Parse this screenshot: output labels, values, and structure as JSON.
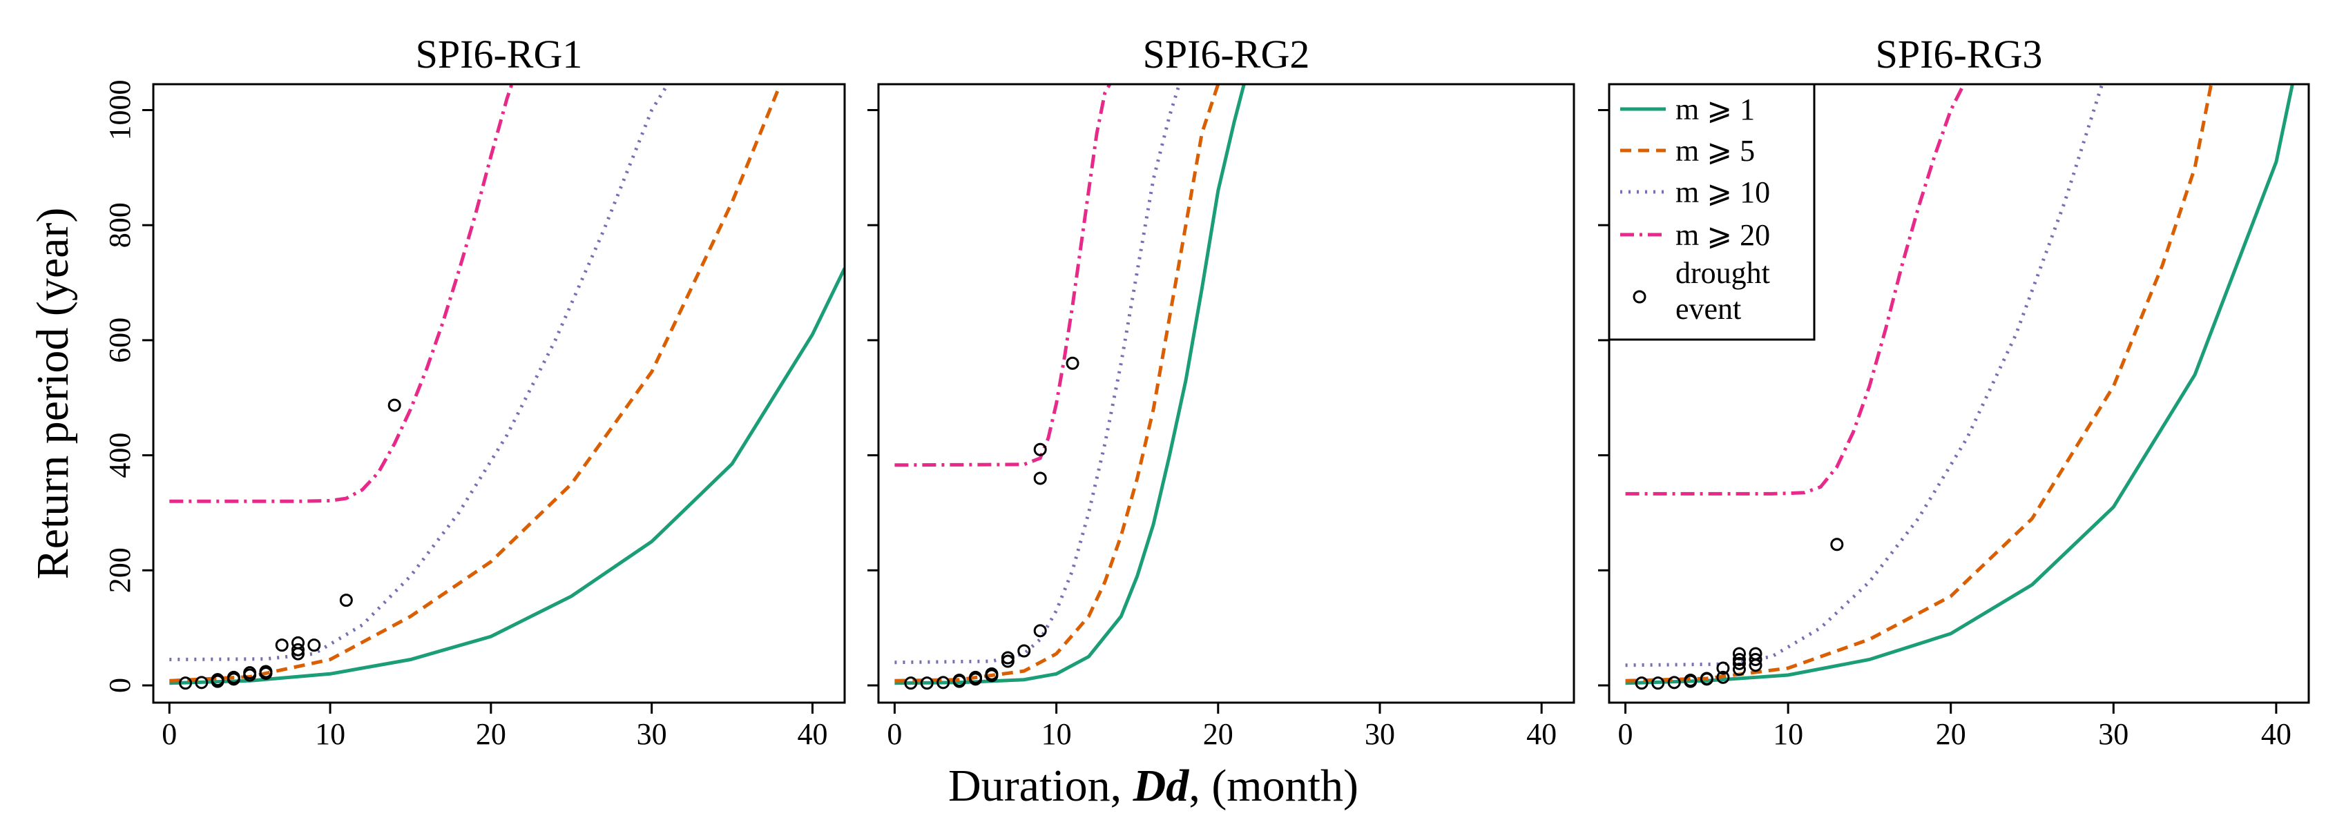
{
  "chart_data": {
    "type": "line",
    "ylabel": "Return period (year)",
    "xlabel": {
      "prefix": "Duration, ",
      "symbol": "Dd",
      "suffix": ", (month)"
    },
    "xlim": [
      -1,
      42
    ],
    "ylim": [
      -30,
      1045
    ],
    "xticks": [
      0,
      10,
      20,
      30,
      40
    ],
    "yticks": [
      0,
      200,
      400,
      600,
      800,
      1000
    ],
    "series_styles": [
      {
        "name": "m ⩾ 1",
        "color": "#1b9e77",
        "dash": "none"
      },
      {
        "name": "m ⩾ 5",
        "color": "#d95f02",
        "dash": "16,10"
      },
      {
        "name": "m ⩾ 10",
        "color": "#7570b3",
        "dash": "3,9"
      },
      {
        "name": "m ⩾ 20",
        "color": "#e7298a",
        "dash": "20,8,4,8"
      }
    ],
    "legend": {
      "placement": "top-left of SPI6-RG3",
      "point_label_line1": "drought",
      "point_label_line2": "event"
    },
    "panels": [
      {
        "title": "SPI6-RG1",
        "series": [
          {
            "name": "m ⩾ 1",
            "x": [
              0,
              5,
              10,
              15,
              20,
              25,
              30,
              35,
              40,
              42
            ],
            "y": [
              4,
              8,
              20,
              45,
              85,
              155,
              250,
              385,
              610,
              725
            ]
          },
          {
            "name": "m ⩾ 5",
            "x": [
              0,
              5,
              10,
              15,
              20,
              25,
              30,
              35,
              38
            ],
            "y": [
              8,
              15,
              45,
              120,
              215,
              350,
              545,
              840,
              1045
            ]
          },
          {
            "name": "m ⩾ 10",
            "x": [
              0,
              6,
              9,
              12,
              15,
              18,
              21,
              24,
              27,
              30,
              31
            ],
            "y": [
              45,
              46,
              55,
              105,
              190,
              300,
              435,
              600,
              790,
              1000,
              1045
            ]
          },
          {
            "name": "m ⩾ 20",
            "x": [
              0,
              8,
              10,
              11,
              12,
              13,
              14,
              15,
              16,
              17,
              18,
              19,
              20,
              21,
              21.3
            ],
            "y": [
              320,
              320,
              321,
              325,
              340,
              370,
              420,
              480,
              550,
              630,
              720,
              815,
              920,
              1020,
              1045
            ]
          }
        ],
        "events": [
          [
            1,
            4
          ],
          [
            2,
            5
          ],
          [
            3,
            7
          ],
          [
            3,
            10
          ],
          [
            4,
            11
          ],
          [
            4,
            14
          ],
          [
            5,
            18
          ],
          [
            5,
            22
          ],
          [
            6,
            21
          ],
          [
            6,
            24
          ],
          [
            7,
            70
          ],
          [
            8,
            55
          ],
          [
            8,
            62
          ],
          [
            8,
            74
          ],
          [
            9,
            70
          ],
          [
            11,
            148
          ],
          [
            14,
            487
          ]
        ]
      },
      {
        "title": "SPI6-RG2",
        "series": [
          {
            "name": "m ⩾ 1",
            "x": [
              0,
              4,
              8,
              10,
              12,
              14,
              15,
              16,
              17,
              18,
              19,
              20,
              21,
              21.6
            ],
            "y": [
              4,
              5,
              10,
              20,
              50,
              120,
              190,
              280,
              400,
              530,
              690,
              860,
              980,
              1045
            ]
          },
          {
            "name": "m ⩾ 5",
            "x": [
              0,
              4,
              8,
              10,
              12,
              13,
              14,
              15,
              16,
              17,
              18,
              19,
              20
            ],
            "y": [
              8,
              10,
              25,
              55,
              120,
              180,
              260,
              360,
              480,
              640,
              800,
              960,
              1045
            ]
          },
          {
            "name": "m ⩾ 10",
            "x": [
              0,
              6,
              8,
              9,
              10,
              11,
              12,
              13,
              14,
              15,
              16,
              17,
              17.6
            ],
            "y": [
              40,
              42,
              55,
              80,
              130,
              200,
              300,
              420,
              560,
              720,
              880,
              990,
              1045
            ]
          },
          {
            "name": "m ⩾ 20",
            "x": [
              0,
              8,
              9,
              9.5,
              10,
              10.5,
              11,
              11.5,
              12,
              12.5,
              13,
              13.3
            ],
            "y": [
              383,
              384,
              395,
              430,
              490,
              570,
              660,
              760,
              860,
              960,
              1030,
              1045
            ]
          }
        ],
        "events": [
          [
            1,
            4
          ],
          [
            2,
            4
          ],
          [
            3,
            5
          ],
          [
            4,
            7
          ],
          [
            4,
            9
          ],
          [
            5,
            11
          ],
          [
            5,
            14
          ],
          [
            6,
            17
          ],
          [
            6,
            20
          ],
          [
            7,
            42
          ],
          [
            7,
            48
          ],
          [
            8,
            60
          ],
          [
            9,
            95
          ],
          [
            9,
            360
          ],
          [
            9,
            410
          ],
          [
            11,
            560
          ]
        ]
      },
      {
        "title": "SPI6-RG3",
        "series": [
          {
            "name": "m ⩾ 1",
            "x": [
              0,
              5,
              10,
              15,
              20,
              25,
              30,
              35,
              40,
              41
            ],
            "y": [
              4,
              8,
              18,
              45,
              90,
              175,
              310,
              540,
              910,
              1045
            ]
          },
          {
            "name": "m ⩾ 5",
            "x": [
              0,
              5,
              10,
              15,
              20,
              25,
              30,
              33,
              35,
              36
            ],
            "y": [
              8,
              12,
              30,
              80,
              155,
              290,
              520,
              730,
              900,
              1045
            ]
          },
          {
            "name": "m ⩾ 10",
            "x": [
              0,
              6,
              9,
              12,
              15,
              18,
              21,
              24,
              27,
              29.3
            ],
            "y": [
              35,
              37,
              50,
              100,
              180,
              290,
              430,
              610,
              840,
              1045
            ]
          },
          {
            "name": "m ⩾ 20",
            "x": [
              0,
              9,
              11,
              12,
              13,
              14,
              15,
              16,
              17,
              18,
              19,
              20,
              20.8
            ],
            "y": [
              333,
              333,
              335,
              345,
              380,
              440,
              520,
              620,
              730,
              830,
              920,
              1000,
              1045
            ]
          }
        ],
        "events": [
          [
            1,
            4
          ],
          [
            2,
            4
          ],
          [
            3,
            5
          ],
          [
            4,
            7
          ],
          [
            4,
            9
          ],
          [
            5,
            11
          ],
          [
            5,
            12
          ],
          [
            6,
            14
          ],
          [
            6,
            30
          ],
          [
            7,
            28
          ],
          [
            7,
            38
          ],
          [
            7,
            45
          ],
          [
            7,
            55
          ],
          [
            8,
            35
          ],
          [
            8,
            45
          ],
          [
            8,
            55
          ],
          [
            13,
            245
          ]
        ]
      }
    ]
  }
}
